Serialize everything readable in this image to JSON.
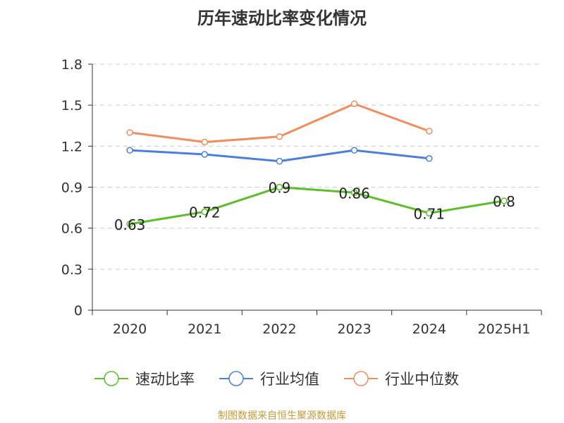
{
  "title": "历年速动比率变化情况",
  "footer": "制图数据来自恒生聚源数据库",
  "chart_data": {
    "type": "line",
    "categories": [
      "2020",
      "2021",
      "2022",
      "2023",
      "2024",
      "2025H1"
    ],
    "ylim": [
      0,
      1.8
    ],
    "yticks": [
      "0",
      "0.3",
      "0.6",
      "0.9",
      "1.2",
      "1.5",
      "1.8"
    ],
    "grid": true,
    "legend_position": "bottom",
    "series": [
      {
        "name": "速动比率",
        "color": "#5cbf2a",
        "values": [
          0.63,
          0.72,
          0.9,
          0.86,
          0.71,
          0.8
        ],
        "labels": [
          "0.63",
          "0.72",
          "0.9",
          "0.86",
          "0.71",
          "0.8"
        ]
      },
      {
        "name": "行业均值",
        "color": "#4a7fdc",
        "values": [
          1.17,
          1.14,
          1.09,
          1.17,
          1.11,
          null
        ]
      },
      {
        "name": "行业中位数",
        "color": "#f28c5a",
        "values": [
          1.3,
          1.23,
          1.27,
          1.51,
          1.31,
          null
        ]
      }
    ]
  }
}
